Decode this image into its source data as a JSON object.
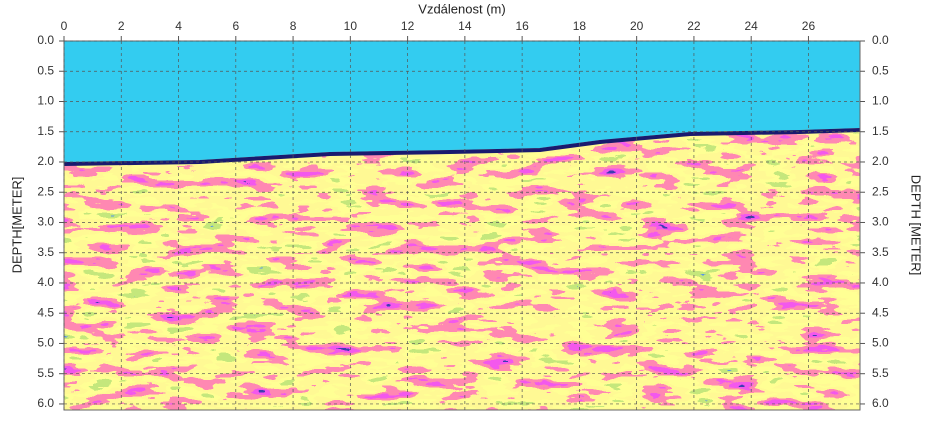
{
  "chart_data": {
    "type": "radargram",
    "x_label": "Vzdálenost (m)",
    "y_label": "DEPTH[METER]",
    "y2_label": "DEPTH [METER]",
    "xlim": [
      0,
      27.8
    ],
    "xticks": [
      0,
      2,
      4,
      6,
      8,
      10,
      12,
      14,
      16,
      18,
      20,
      22,
      24,
      26
    ],
    "ylim": [
      0,
      6.1
    ],
    "yticks": [
      {
        "value": 0,
        "label": "0.0"
      },
      {
        "value": 0.5,
        "label": "0.5"
      },
      {
        "value": 1,
        "label": "1.0"
      },
      {
        "value": 1.5,
        "label": "1.5"
      },
      {
        "value": 2,
        "label": "2.0"
      },
      {
        "value": 2.5,
        "label": "2.5"
      },
      {
        "value": 3,
        "label": "3.0"
      },
      {
        "value": 3.5,
        "label": "3.5"
      },
      {
        "value": 4,
        "label": "4.0"
      },
      {
        "value": 4.5,
        "label": "4.5"
      },
      {
        "value": 5,
        "label": "5.0"
      },
      {
        "value": 5.5,
        "label": "5.5"
      },
      {
        "value": 6,
        "label": "6.0"
      }
    ],
    "y_inverted": true,
    "grid": true
  }
}
